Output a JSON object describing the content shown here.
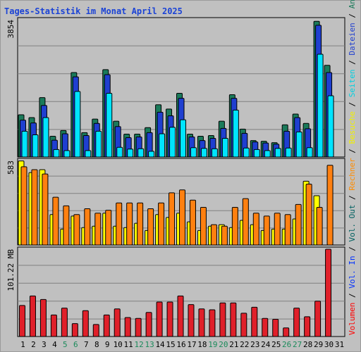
{
  "chart_data": {
    "type": "bar",
    "title": "Tages-Statistik im Monat April 2025",
    "x": [
      "1",
      "2",
      "3",
      "4",
      "5",
      "6",
      "7",
      "8",
      "9",
      "10",
      "11",
      "12",
      "13",
      "14",
      "15",
      "16",
      "17",
      "18",
      "19",
      "20",
      "21",
      "22",
      "23",
      "24",
      "25",
      "26",
      "27",
      "28",
      "29",
      "30",
      "31"
    ],
    "weekend_days": [
      "5",
      "6",
      "12",
      "13",
      "19",
      "20",
      "26",
      "27"
    ],
    "panels": [
      {
        "name": "top",
        "ymax_label": "3854",
        "ymax": 3854,
        "series": [
          {
            "name": "Anfragen",
            "color": "#1a7a5a",
            "values": [
              1180,
              1100,
              1660,
              580,
              740,
              2360,
              680,
              1060,
              2440,
              1000,
              640,
              640,
              820,
              1460,
              1340,
              1780,
              640,
              580,
              600,
              1000,
              1740,
              780,
              460,
              440,
              400,
              900,
              1200,
              940,
              3790,
              2560,
              0
            ]
          },
          {
            "name": "Dateien",
            "color": "#1f3fd0",
            "values": [
              1030,
              950,
              1440,
              470,
              650,
              2240,
              600,
              940,
              2300,
              850,
              540,
              560,
              680,
              1250,
              1150,
              1640,
              560,
              460,
              520,
              800,
              1640,
              660,
              420,
              390,
              360,
              720,
              1100,
              790,
              3680,
              2360,
              0
            ]
          },
          {
            "name": "Seiten",
            "color": "#00e4ff",
            "values": [
              720,
              620,
              1100,
              210,
              180,
              1830,
              180,
              720,
              1780,
              270,
              220,
              230,
              160,
              650,
              830,
              1040,
              260,
              240,
              230,
              520,
              1310,
              250,
              210,
              180,
              240,
              250,
              700,
              260,
              2870,
              1710,
              0
            ]
          }
        ]
      },
      {
        "name": "middle",
        "ymax_label": "583",
        "ymax": 583,
        "series": [
          {
            "name": "Besuche",
            "color": "#ffff00",
            "values": [
              580,
              500,
              520,
              210,
              110,
              200,
              120,
              130,
              220,
              130,
              120,
              150,
              100,
              210,
              190,
              220,
              160,
              100,
              130,
              140,
              120,
              170,
              140,
              100,
              110,
              110,
              180,
              440,
              340,
              0,
              0
            ]
          },
          {
            "name": "Rechner",
            "color": "#ff8010",
            "values": [
              540,
              520,
              490,
              330,
              270,
              210,
              250,
              220,
              240,
              290,
              290,
              290,
              250,
              290,
              360,
              380,
              310,
              260,
              140,
              130,
              260,
              320,
              220,
              200,
              220,
              210,
              280,
              420,
              260,
              550,
              0
            ]
          }
        ]
      },
      {
        "name": "bottom",
        "ymax_label": "101.22 MB",
        "ymax": 101.22,
        "series": [
          {
            "name": "Volumen",
            "color": "#e0202a",
            "values": [
              36,
              47,
              43,
              25,
              33,
              15,
              30,
              14,
              25,
              32,
              22,
              21,
              28,
              40,
              40,
              47,
              37,
              32,
              31,
              39,
              39,
              27,
              34,
              21,
              20,
              10,
              33,
              23,
              41,
              101.22,
              0
            ]
          }
        ]
      }
    ],
    "right_legend": [
      {
        "label": "Volumen",
        "color": "#ff0000"
      },
      {
        "label": "/",
        "color": "#000000"
      },
      {
        "label": "Vol. In",
        "color": "#0030ff"
      },
      {
        "label": "/",
        "color": "#000000"
      },
      {
        "label": "Vol. Out",
        "color": "#006060"
      },
      {
        "label": "/",
        "color": "#000000"
      },
      {
        "label": "Rechner",
        "color": "#ff8c00"
      },
      {
        "label": "/",
        "color": "#000000"
      },
      {
        "label": "Besuche",
        "color": "#f0f000"
      },
      {
        "label": "/",
        "color": "#000000"
      },
      {
        "label": "Seiten",
        "color": "#00d0e0"
      },
      {
        "label": "/",
        "color": "#000000"
      },
      {
        "label": "Dateien",
        "color": "#1f3fd0"
      },
      {
        "label": "/",
        "color": "#000000"
      },
      {
        "label": "Anfragen",
        "color": "#1a7a5a"
      }
    ],
    "colors": {
      "background": "#c0c0c0",
      "gridline": "#808080",
      "title": "#1b43d6",
      "weekend_label": "#1a8a5a"
    }
  }
}
